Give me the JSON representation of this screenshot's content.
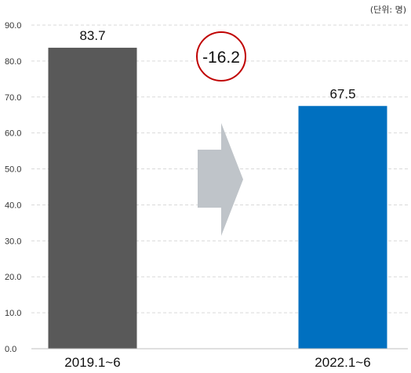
{
  "chart_data": {
    "type": "bar",
    "unit_label": "(단위: 명)",
    "y_ticks": [
      "0.0",
      "10.0",
      "20.0",
      "30.0",
      "40.0",
      "50.0",
      "60.0",
      "70.0",
      "80.0",
      "90.0"
    ],
    "ylim": [
      0,
      90
    ],
    "grid": true,
    "categories": [
      "2019.1~6",
      "2022.1~6"
    ],
    "values": [
      83.7,
      67.5
    ],
    "value_labels": [
      "83.7",
      "67.5"
    ],
    "bar_colors": [
      "#595959",
      "#0070c0"
    ],
    "difference_label": "-16.2",
    "difference_circle_color": "#c00000",
    "arrow_color": "#bfc4c9"
  }
}
